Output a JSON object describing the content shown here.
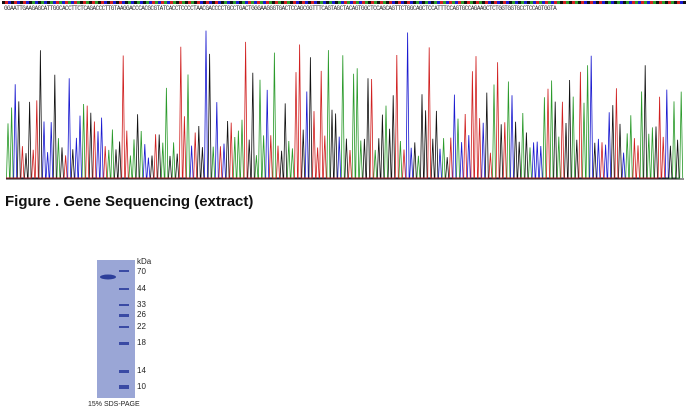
{
  "sequence": {
    "text": "GGAATTGAAGAGCATTGGCACCTTCTCAGACCCTTGTAAGGACCCACGCGTATCACCTCCCCTAACGACCCCTGCCTGACTGGGAAGGGTGACTCCAGCGGTTTCAGTAGCTACAGTGGCTCCAGCAGTTCTGGCAGCTCCATTTCCAGTGCCAGAAGCTCTGGTGGTGCCTCCAGTGGTA"
  },
  "figure": {
    "caption": "Figure . Gene Sequencing (extract)"
  },
  "gel": {
    "unit": "kDa",
    "markers": [
      "70",
      "44",
      "33",
      "26",
      "22",
      "18",
      "14",
      "10"
    ],
    "caption": "15% SDS-PAGE"
  }
}
